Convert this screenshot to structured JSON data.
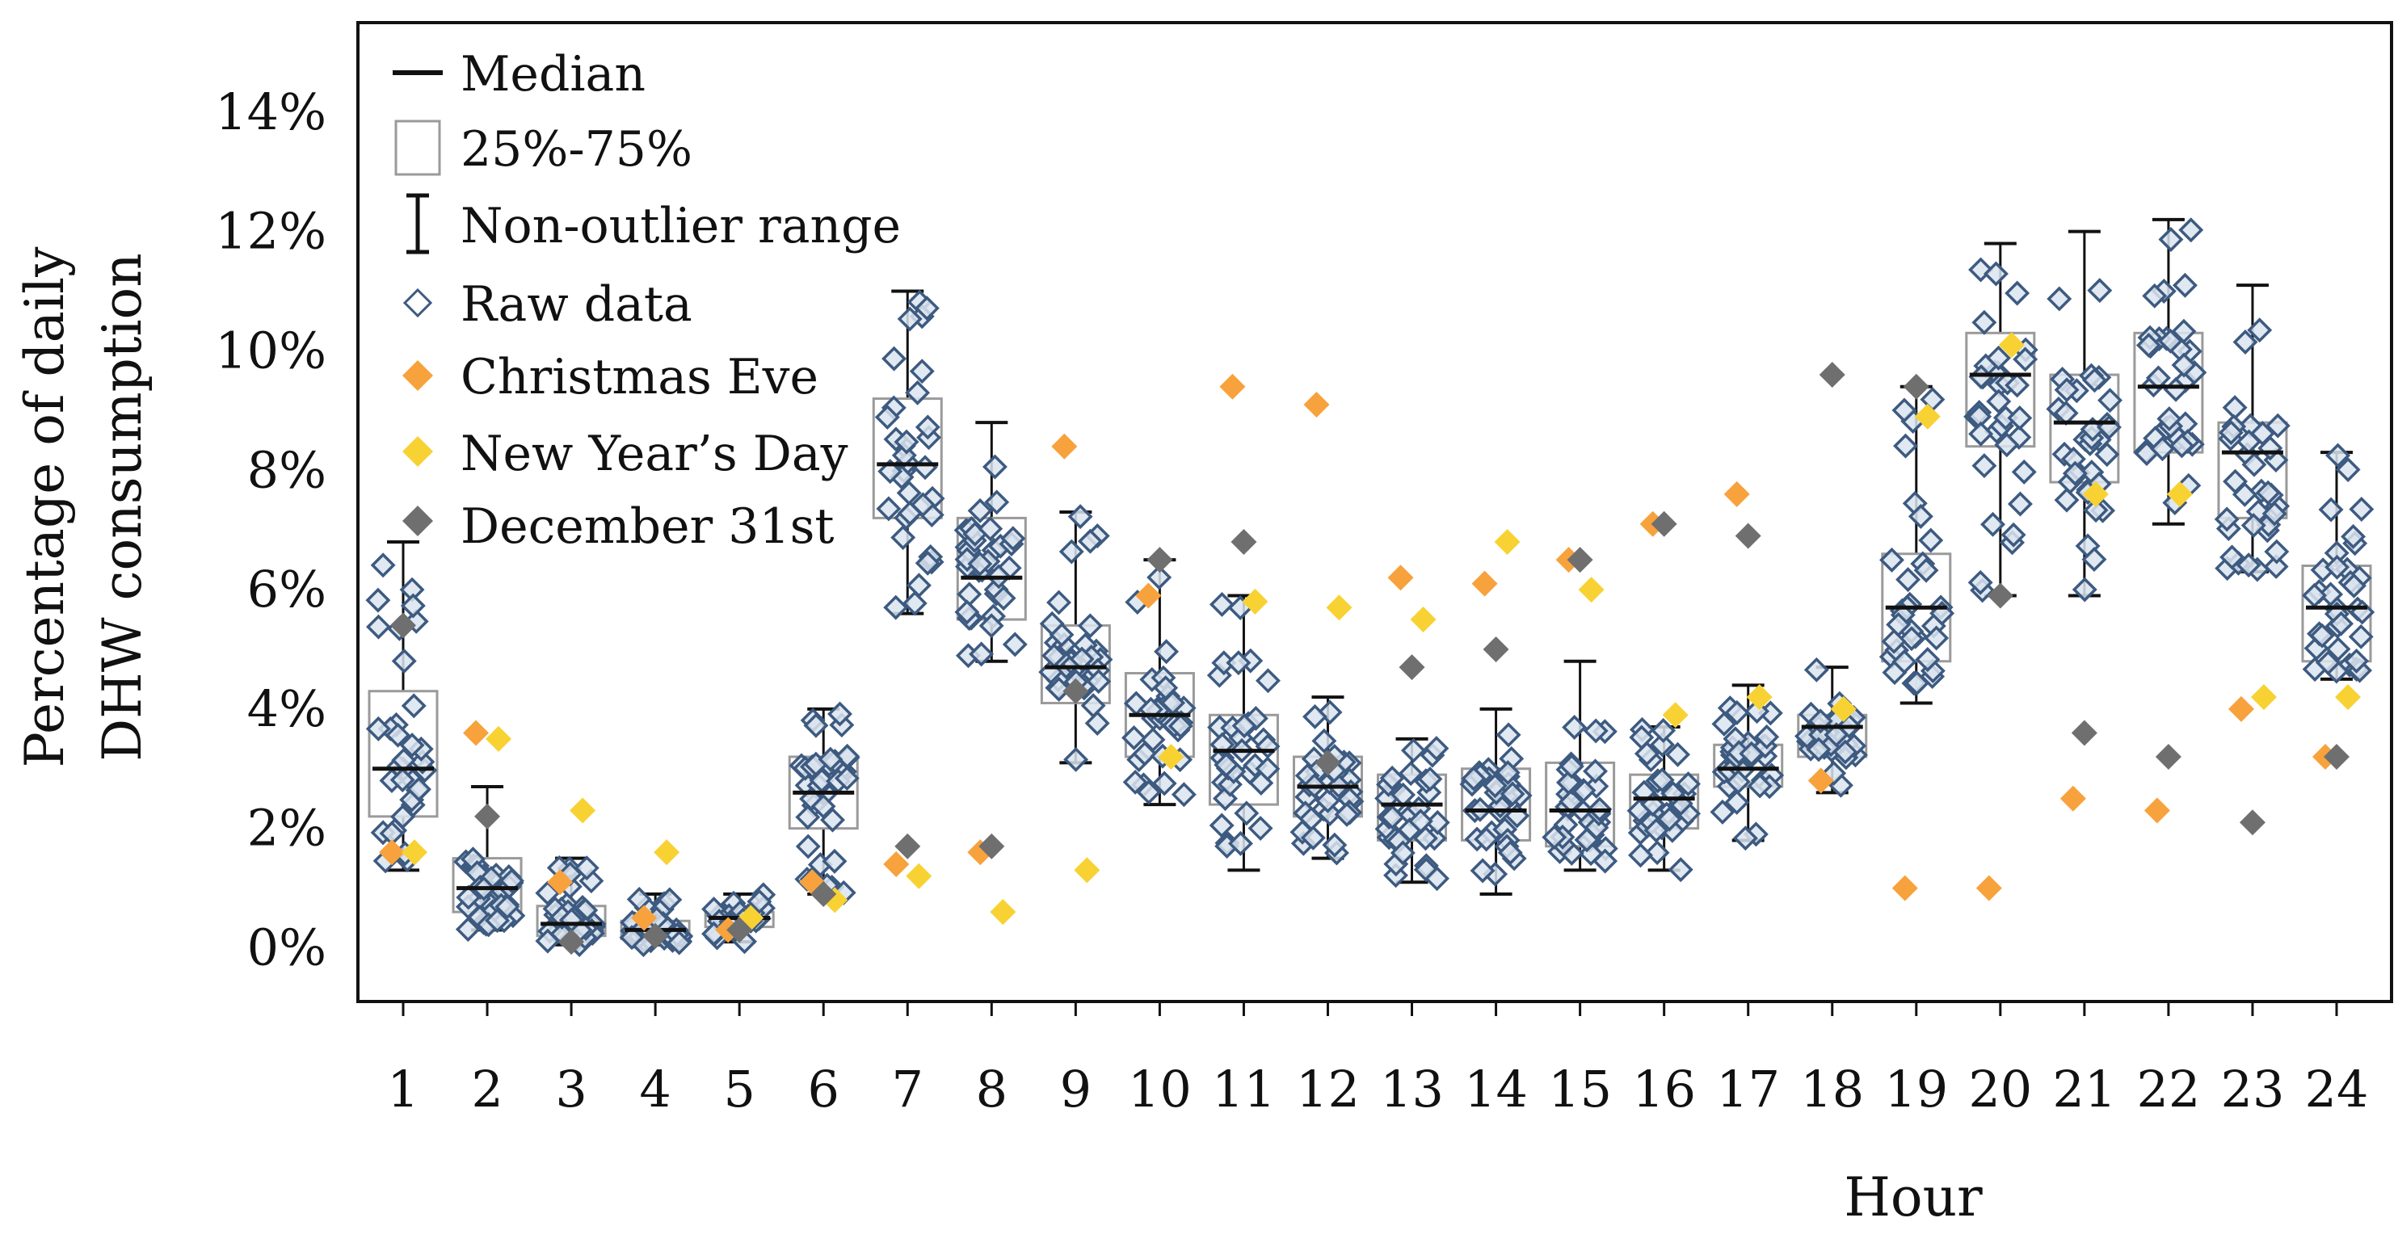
{
  "chart_data": {
    "type": "box",
    "xlabel": "Hour",
    "ylabel_lines": [
      "Percentage of daily",
      "DHW consumption"
    ],
    "y_ticks": [
      "0%",
      "2%",
      "4%",
      "6%",
      "8%",
      "10%",
      "12%",
      "14%"
    ],
    "y_tick_values": [
      0,
      2,
      4,
      6,
      8,
      10,
      12,
      14
    ],
    "ylim": [
      -0.9,
      15.5
    ],
    "categories": [
      "1",
      "2",
      "3",
      "4",
      "5",
      "6",
      "7",
      "8",
      "9",
      "10",
      "11",
      "12",
      "13",
      "14",
      "15",
      "16",
      "17",
      "18",
      "19",
      "20",
      "21",
      "22",
      "23",
      "24"
    ],
    "legend": {
      "median": "Median",
      "iqr": "25%-75%",
      "range": "Non-outlier range",
      "raw": "Raw data",
      "christmas": "Christmas Eve",
      "newyear": "New Year’s Day",
      "dec31": "December 31st"
    },
    "colors": {
      "raw": "#3d5a80",
      "raw_fill": "#dbe4ef",
      "box": "#9a9a9a",
      "christmas": "#f7a23c",
      "newyear": "#f8d233",
      "dec31": "#6f6f6f",
      "median": "#111111"
    },
    "boxes": [
      {
        "hour": "1",
        "min": 1.3,
        "q1": 2.2,
        "median": 3.0,
        "q3": 4.3,
        "max": 6.8
      },
      {
        "hour": "2",
        "min": 0.3,
        "q1": 0.6,
        "median": 1.0,
        "q3": 1.5,
        "max": 2.7
      },
      {
        "hour": "3",
        "min": 0.05,
        "q1": 0.2,
        "median": 0.4,
        "q3": 0.7,
        "max": 1.5
      },
      {
        "hour": "4",
        "min": 0.05,
        "q1": 0.15,
        "median": 0.3,
        "q3": 0.45,
        "max": 0.9
      },
      {
        "hour": "5",
        "min": 0.1,
        "q1": 0.35,
        "median": 0.5,
        "q3": 0.6,
        "max": 0.9
      },
      {
        "hour": "6",
        "min": 0.9,
        "q1": 2.0,
        "median": 2.6,
        "q3": 3.2,
        "max": 4.0
      },
      {
        "hour": "7",
        "min": 5.6,
        "q1": 7.2,
        "median": 8.1,
        "q3": 9.2,
        "max": 11.0
      },
      {
        "hour": "8",
        "min": 4.8,
        "q1": 5.5,
        "median": 6.2,
        "q3": 7.2,
        "max": 8.8
      },
      {
        "hour": "9",
        "min": 3.1,
        "q1": 4.1,
        "median": 4.7,
        "q3": 5.4,
        "max": 7.3
      },
      {
        "hour": "10",
        "min": 2.4,
        "q1": 3.2,
        "median": 3.9,
        "q3": 4.6,
        "max": 6.5
      },
      {
        "hour": "11",
        "min": 1.3,
        "q1": 2.4,
        "median": 3.3,
        "q3": 3.9,
        "max": 5.9
      },
      {
        "hour": "12",
        "min": 1.5,
        "q1": 2.2,
        "median": 2.7,
        "q3": 3.2,
        "max": 4.2
      },
      {
        "hour": "13",
        "min": 1.1,
        "q1": 1.8,
        "median": 2.4,
        "q3": 2.9,
        "max": 3.5
      },
      {
        "hour": "14",
        "min": 0.9,
        "q1": 1.8,
        "median": 2.3,
        "q3": 3.0,
        "max": 4.0
      },
      {
        "hour": "15",
        "min": 1.3,
        "q1": 1.7,
        "median": 2.3,
        "q3": 3.1,
        "max": 4.8
      },
      {
        "hour": "16",
        "min": 1.3,
        "q1": 2.0,
        "median": 2.5,
        "q3": 2.9,
        "max": 3.7
      },
      {
        "hour": "17",
        "min": 1.8,
        "q1": 2.7,
        "median": 3.0,
        "q3": 3.4,
        "max": 4.4
      },
      {
        "hour": "18",
        "min": 2.6,
        "q1": 3.2,
        "median": 3.7,
        "q3": 3.9,
        "max": 4.7
      },
      {
        "hour": "19",
        "min": 4.1,
        "q1": 4.8,
        "median": 5.7,
        "q3": 6.6,
        "max": 9.4
      },
      {
        "hour": "20",
        "min": 5.9,
        "q1": 8.4,
        "median": 9.6,
        "q3": 10.3,
        "max": 11.8
      },
      {
        "hour": "21",
        "min": 5.9,
        "q1": 7.8,
        "median": 8.8,
        "q3": 9.6,
        "max": 12.0
      },
      {
        "hour": "22",
        "min": 7.1,
        "q1": 8.3,
        "median": 9.4,
        "q3": 10.3,
        "max": 12.2
      },
      {
        "hour": "23",
        "min": 6.3,
        "q1": 7.2,
        "median": 8.3,
        "q3": 8.8,
        "max": 11.1
      },
      {
        "hour": "24",
        "min": 4.5,
        "q1": 4.8,
        "median": 5.7,
        "q3": 6.4,
        "max": 8.3
      }
    ],
    "special_days": {
      "christmas_eve": [
        1.6,
        3.6,
        1.1,
        0.5,
        0.3,
        1.1,
        1.4,
        1.6,
        8.4,
        5.9,
        9.4,
        9.1,
        6.2,
        6.1,
        6.5,
        7.1,
        7.6,
        2.8,
        1.0,
        1.0,
        2.5,
        2.3,
        4.0,
        3.2
      ],
      "new_years_day": [
        1.6,
        3.5,
        2.3,
        1.6,
        0.5,
        0.8,
        1.2,
        0.6,
        1.3,
        3.2,
        5.8,
        5.7,
        5.5,
        6.8,
        6.0,
        3.9,
        4.2,
        4.0,
        8.9,
        10.1,
        7.6,
        7.6,
        4.2,
        4.2
      ],
      "december_31": [
        5.4,
        2.2,
        0.1,
        0.2,
        0.3,
        0.9,
        1.7,
        1.7,
        4.3,
        6.5,
        6.8,
        3.1,
        4.7,
        5.0,
        6.5,
        7.1,
        6.9,
        9.6,
        9.4,
        5.9,
        3.6,
        3.2,
        2.1,
        3.2
      ]
    }
  }
}
